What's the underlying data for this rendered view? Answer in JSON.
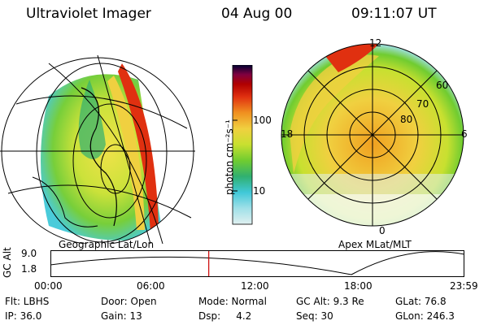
{
  "header": {
    "title": "Ultraviolet Imager",
    "date": "04 Aug 00",
    "time": "09:11:07 UT"
  },
  "colorbar": {
    "unit_label": "photon cm⁻²s⁻¹",
    "ticks": [
      "100",
      "10"
    ],
    "colors": [
      "#e0f0f0",
      "#a0e0e8",
      "#40c8d8",
      "#30b070",
      "#70cc30",
      "#c8e030",
      "#f0d040",
      "#f09020",
      "#e03010",
      "#b00000",
      "#800040",
      "#400060",
      "#000030"
    ]
  },
  "left_panel": {
    "label": "Geographic Lat/Lon"
  },
  "right_panel": {
    "label": "Apex MLat/MLT",
    "mlt_labels": {
      "top": "12",
      "left": "18",
      "right": "6",
      "bottom": "0"
    },
    "lat_labels": [
      "60",
      "70",
      "80"
    ]
  },
  "altitude_plot": {
    "ylabel": "GC Alt",
    "yticks": [
      "9.0",
      "1.8"
    ],
    "xticks": [
      "00:00",
      "06:00",
      "12:00",
      "18:00",
      "23:59"
    ],
    "current_time_fraction": 0.382
  },
  "footer": {
    "row1": {
      "flt": "Flt: LBHS",
      "door": "Door: Open",
      "mode": "Mode: Normal",
      "gcalt": "GC Alt: 9.3 Re",
      "glat": "GLat:  76.8"
    },
    "row2": {
      "ip": "IP: 36.0",
      "gain": "Gain: 13",
      "dsp": "Dsp:     4.2",
      "seq": "Seq: 30",
      "glon": "GLon: 246.3"
    }
  },
  "colors": {
    "background": "#ffffff",
    "marker": "#cc0000"
  }
}
